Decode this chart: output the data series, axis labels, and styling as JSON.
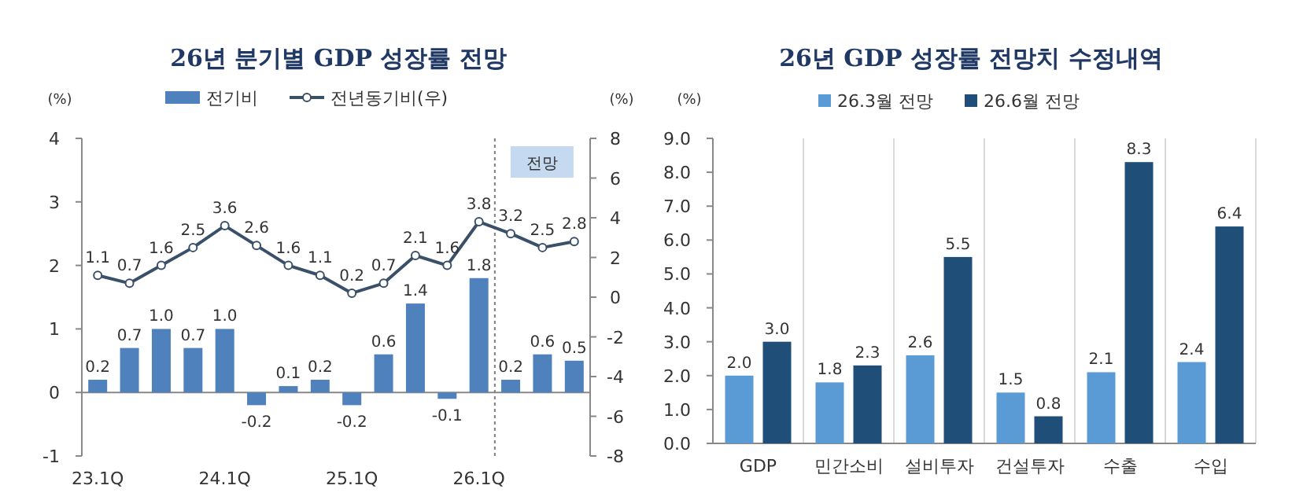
{
  "chart_data": [
    {
      "type": "bar",
      "title": "26년 분기별 GDP 성장률 전망",
      "ylabel": "(%)",
      "y2label": "(%)",
      "categories": [
        "23.1Q",
        null,
        null,
        null,
        "24.1Q",
        null,
        null,
        null,
        "25.1Q",
        null,
        null,
        null,
        "26.1Q",
        null,
        null,
        null
      ],
      "series": [
        {
          "name": "전기비",
          "type": "bar",
          "color": "#4f81bd",
          "values": [
            0.2,
            0.7,
            1.0,
            0.7,
            1.0,
            -0.2,
            0.1,
            0.2,
            -0.2,
            0.6,
            1.4,
            -0.1,
            1.8,
            0.2,
            0.6,
            0.5
          ],
          "value_labels": [
            "0.2",
            "0.7",
            "1.0",
            "0.7",
            "1.0",
            "-0.2",
            "0.1",
            "0.2",
            "-0.2",
            "0.6",
            "1.4",
            "-0.1",
            "1.8",
            "0.2",
            "0.6",
            "0.5"
          ]
        },
        {
          "name": "전년동기비(우)",
          "type": "line",
          "axis": "y2",
          "color": "#3a5068",
          "marker": "circle",
          "line_style": "solid",
          "values": [
            1.1,
            0.7,
            1.6,
            2.5,
            3.6,
            2.6,
            1.6,
            1.1,
            0.2,
            0.7,
            2.1,
            1.6,
            3.8,
            3.2,
            2.5,
            2.8
          ],
          "value_labels": [
            "1.1",
            "0.7",
            "1.6",
            "2.5",
            "3.6",
            "2.6",
            "1.6",
            "1.1",
            "0.2",
            "0.7",
            "2.1",
            "1.6",
            "3.8",
            "3.2",
            "2.5",
            "2.8"
          ]
        }
      ],
      "ylim": [
        -1,
        4
      ],
      "yticks": [
        -1,
        0,
        1,
        2,
        3,
        4
      ],
      "y2lim": [
        -8,
        8
      ],
      "y2ticks": [
        -8,
        -6,
        -4,
        -2,
        0,
        2,
        4,
        6,
        8
      ],
      "annotations": [
        "전망"
      ],
      "legend": "top",
      "grid": false
    },
    {
      "type": "bar",
      "title": "26년 GDP 성장률 전망치 수정내역",
      "ylabel": "(%)",
      "categories": [
        "GDP",
        "민간소비",
        "설비투자",
        "건설투자",
        "수출",
        "수입"
      ],
      "series": [
        {
          "name": "26.3월 전망",
          "color": "#5b9bd5",
          "values": [
            2.0,
            1.8,
            2.6,
            1.5,
            2.1,
            2.4
          ],
          "value_labels": [
            "2.0",
            "1.8",
            "2.6",
            "1.5",
            "2.1",
            "2.4"
          ]
        },
        {
          "name": "26.6월 전망",
          "color": "#1f4e79",
          "values": [
            3.0,
            2.3,
            5.5,
            0.8,
            8.3,
            6.4
          ],
          "value_labels": [
            "3.0",
            "2.3",
            "5.5",
            "0.8",
            "8.3",
            "6.4"
          ]
        }
      ],
      "ylim": [
        0,
        9
      ],
      "yticks": [
        {
          "value": 0,
          "label": "0.0"
        },
        {
          "value": 1,
          "label": "1.0"
        },
        {
          "value": 2,
          "label": "2.0"
        },
        {
          "value": 3,
          "label": "3.0"
        },
        {
          "value": 4,
          "label": "4.0"
        },
        {
          "value": 5,
          "label": "5.0"
        },
        {
          "value": 6,
          "label": "6.0"
        },
        {
          "value": 7,
          "label": "7.0"
        },
        {
          "value": 8,
          "label": "8.0"
        },
        {
          "value": 9,
          "label": "9.0"
        }
      ],
      "legend": "top",
      "grid": "x"
    }
  ]
}
